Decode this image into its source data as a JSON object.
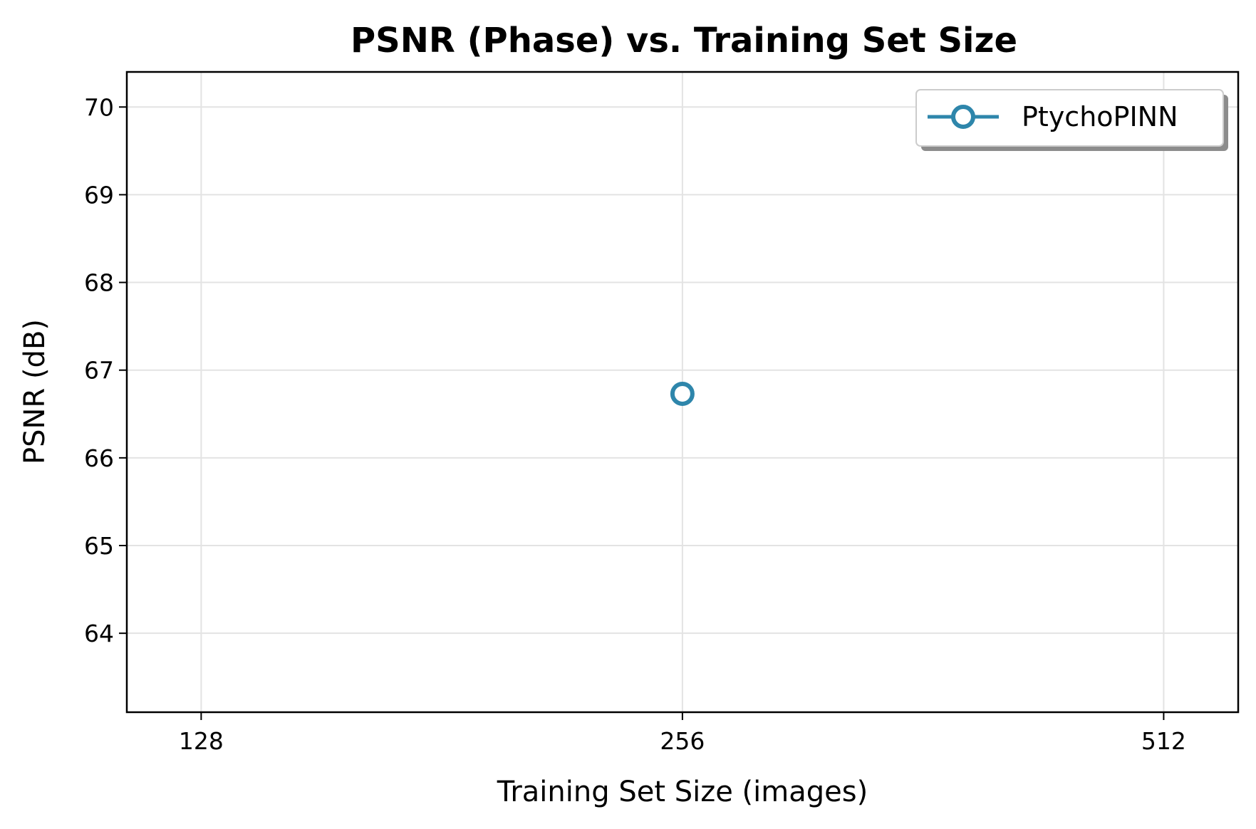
{
  "chart_data": {
    "type": "line",
    "title": "PSNR (Phase) vs. Training Set Size",
    "xlabel": "Training Set Size (images)",
    "ylabel": "PSNR (dB)",
    "x_scale": "log2",
    "x_ticks": [
      128,
      256,
      512
    ],
    "x_tick_labels": [
      "128",
      "256",
      "512"
    ],
    "xlim": [
      115,
      570
    ],
    "ylim": [
      63.1,
      70.4
    ],
    "y_ticks": [
      64,
      65,
      66,
      67,
      68,
      69,
      70
    ],
    "y_tick_labels": [
      "64",
      "65",
      "66",
      "67",
      "68",
      "69",
      "70"
    ],
    "grid": true,
    "legend_position": "top-right",
    "series": [
      {
        "name": "PtychoPINN",
        "color": "#2e86ab",
        "marker": "open-circle",
        "x": [
          256
        ],
        "y": [
          66.73
        ]
      }
    ]
  }
}
